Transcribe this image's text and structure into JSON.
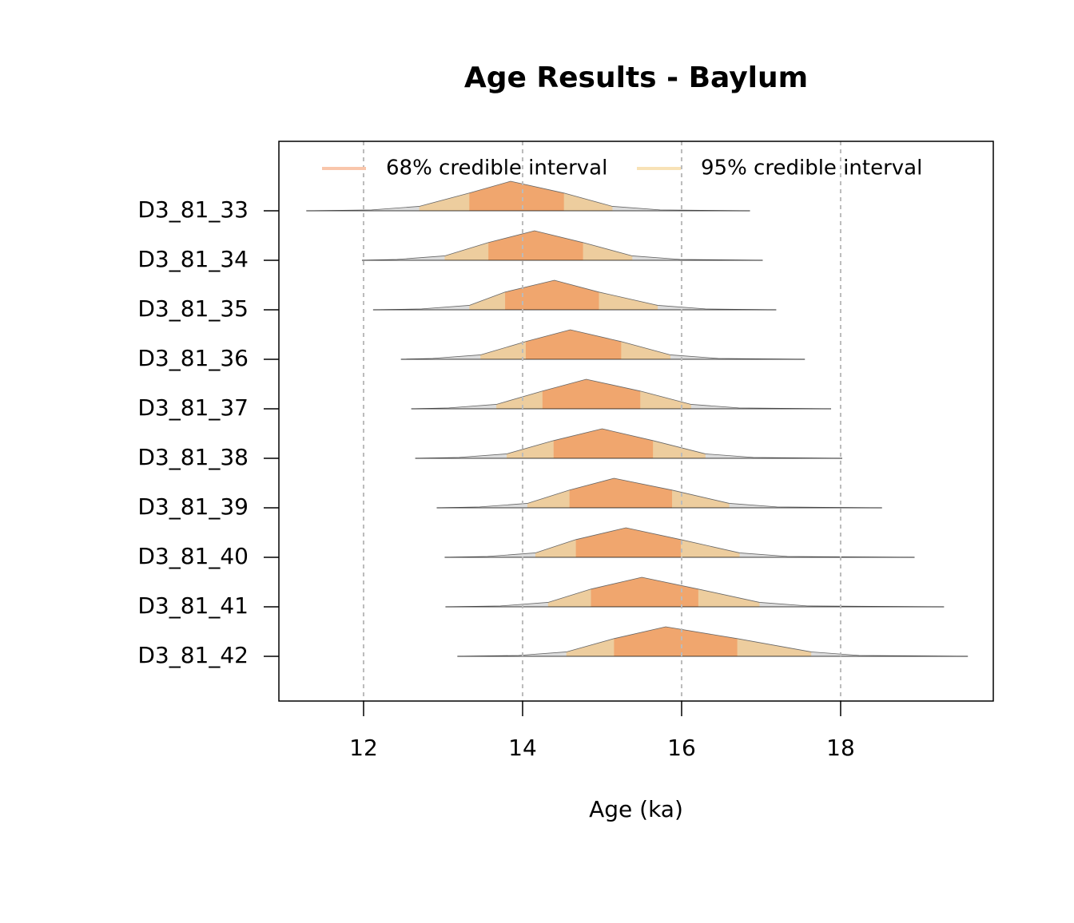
{
  "chart_data": {
    "type": "ridgeline",
    "title": "Age Results - Baylum",
    "x_label": "Age (ka)",
    "xlim": [
      10.935,
      19.92
    ],
    "xticks": [
      12,
      14,
      16,
      18
    ],
    "grid": true,
    "legend": [
      {
        "name": "68% credible interval",
        "color": "#f9c6ab"
      },
      {
        "name": "95% credible interval",
        "color": "#f8e2b6"
      }
    ],
    "colors": {
      "ci68": "#f0a66e",
      "ci95": "#edcd9e",
      "tail": "#dcdcdc"
    },
    "categories": [
      "D3_81_33",
      "D3_81_34",
      "D3_81_35",
      "D3_81_36",
      "D3_81_37",
      "D3_81_38",
      "D3_81_39",
      "D3_81_40",
      "D3_81_41",
      "D3_81_42"
    ],
    "series": [
      {
        "range": [
          11.28,
          16.86
        ],
        "ci95": [
          12.7,
          15.13
        ],
        "ci68": [
          13.33,
          14.52
        ],
        "x": [
          11.28,
          12.1,
          12.7,
          13.33,
          13.85,
          14.52,
          15.13,
          15.73,
          16.86
        ],
        "density": [
          0,
          0.03,
          0.15,
          0.6,
          1,
          0.6,
          0.15,
          0.03,
          0
        ]
      },
      {
        "range": [
          11.98,
          17.02
        ],
        "ci95": [
          13.02,
          15.38
        ],
        "ci68": [
          13.57,
          14.76
        ],
        "x": [
          11.98,
          12.42,
          13.02,
          13.57,
          14.15,
          14.76,
          15.38,
          15.98,
          17.02
        ],
        "density": [
          0,
          0.03,
          0.15,
          0.6,
          1,
          0.6,
          0.15,
          0.03,
          0
        ]
      },
      {
        "range": [
          12.12,
          17.19
        ],
        "ci95": [
          13.33,
          15.7
        ],
        "ci68": [
          13.78,
          14.96
        ],
        "x": [
          12.12,
          12.73,
          13.33,
          13.78,
          14.4,
          14.96,
          15.7,
          16.3,
          17.19
        ],
        "density": [
          0,
          0.03,
          0.15,
          0.6,
          1,
          0.6,
          0.15,
          0.03,
          0
        ]
      },
      {
        "range": [
          12.47,
          17.55
        ],
        "ci95": [
          13.47,
          15.86
        ],
        "ci68": [
          14.04,
          15.24
        ],
        "x": [
          12.47,
          12.87,
          13.47,
          14.04,
          14.6,
          15.24,
          15.86,
          16.46,
          17.55
        ],
        "density": [
          0,
          0.03,
          0.15,
          0.6,
          1,
          0.6,
          0.15,
          0.03,
          0
        ]
      },
      {
        "range": [
          12.6,
          17.88
        ],
        "ci95": [
          13.67,
          16.12
        ],
        "ci68": [
          14.25,
          15.48
        ],
        "x": [
          12.6,
          13.07,
          13.67,
          14.25,
          14.8,
          15.48,
          16.12,
          16.72,
          17.88
        ],
        "density": [
          0,
          0.03,
          0.15,
          0.6,
          1,
          0.6,
          0.15,
          0.03,
          0
        ]
      },
      {
        "range": [
          12.65,
          18.02
        ],
        "ci95": [
          13.8,
          16.3
        ],
        "ci68": [
          14.39,
          15.64
        ],
        "x": [
          12.65,
          13.2,
          13.8,
          14.39,
          15.0,
          15.64,
          16.3,
          16.9,
          18.02
        ],
        "density": [
          0,
          0.03,
          0.15,
          0.6,
          1,
          0.6,
          0.15,
          0.03,
          0
        ]
      },
      {
        "range": [
          12.92,
          18.52
        ],
        "ci95": [
          14.06,
          16.6
        ],
        "ci68": [
          14.59,
          15.88
        ],
        "x": [
          12.92,
          13.46,
          14.06,
          14.59,
          15.15,
          15.88,
          16.6,
          17.2,
          18.52
        ],
        "density": [
          0,
          0.03,
          0.15,
          0.6,
          1,
          0.6,
          0.15,
          0.03,
          0
        ]
      },
      {
        "range": [
          13.02,
          18.93
        ],
        "ci95": [
          14.16,
          16.73
        ],
        "ci68": [
          14.67,
          15.99
        ],
        "x": [
          13.02,
          13.56,
          14.16,
          14.67,
          15.3,
          15.99,
          16.73,
          17.33,
          18.93
        ],
        "density": [
          0,
          0.03,
          0.15,
          0.6,
          1,
          0.6,
          0.15,
          0.03,
          0
        ]
      },
      {
        "range": [
          13.03,
          19.3
        ],
        "ci95": [
          14.32,
          16.98
        ],
        "ci68": [
          14.86,
          16.21
        ],
        "x": [
          13.03,
          13.72,
          14.32,
          14.86,
          15.5,
          16.21,
          16.98,
          17.58,
          19.3
        ],
        "density": [
          0,
          0.03,
          0.15,
          0.6,
          1,
          0.6,
          0.15,
          0.03,
          0
        ]
      },
      {
        "range": [
          13.18,
          19.6
        ],
        "ci95": [
          14.55,
          17.63
        ],
        "ci68": [
          15.15,
          16.7
        ],
        "x": [
          13.18,
          13.95,
          14.55,
          15.15,
          15.8,
          16.7,
          17.63,
          18.23,
          19.6
        ],
        "density": [
          0,
          0.03,
          0.15,
          0.6,
          1,
          0.6,
          0.15,
          0.03,
          0
        ]
      }
    ]
  }
}
